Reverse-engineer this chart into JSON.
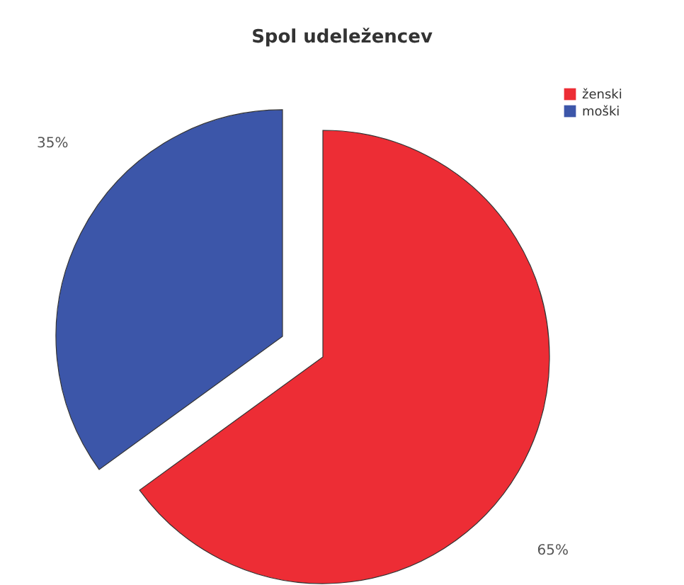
{
  "chart_data": {
    "type": "pie",
    "title": "Spol udeležencev",
    "categories": [
      "ženski",
      "moški"
    ],
    "values": [
      65,
      35
    ],
    "colors": [
      "#ed2d35",
      "#3c56a9"
    ],
    "value_labels": [
      "65%",
      "35%"
    ],
    "legend": "top right"
  }
}
